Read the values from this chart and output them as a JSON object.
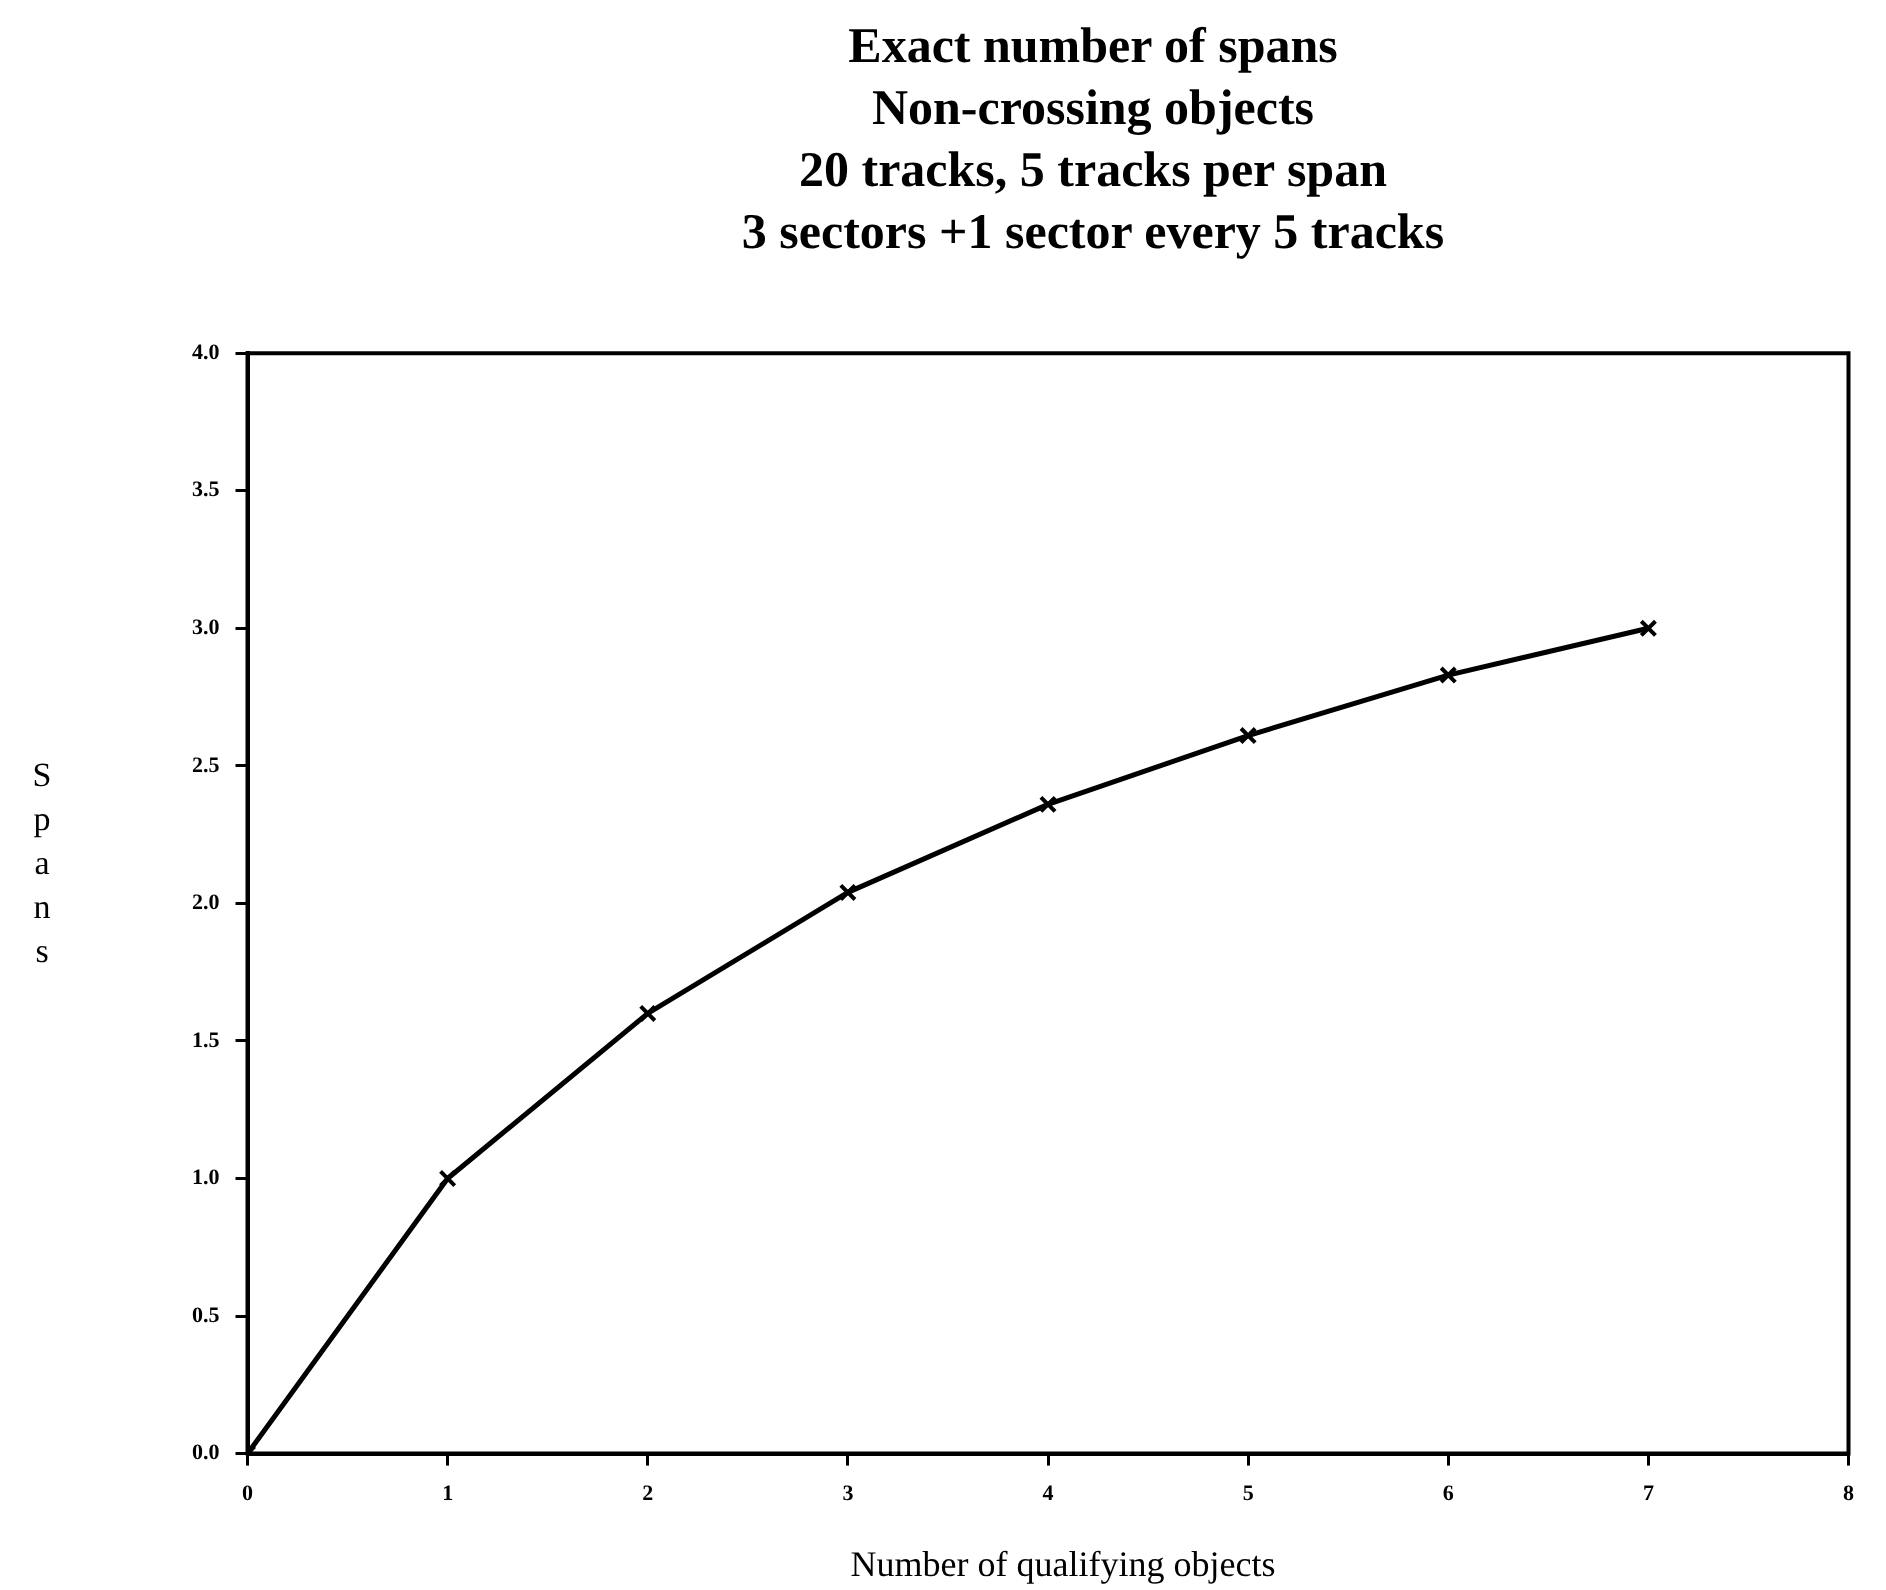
{
  "chart_data": {
    "type": "line",
    "title": "Exact number of spans\nNon-crossing objects\n20 tracks, 5 tracks per span\n3 sectors +1 sector every 5 tracks",
    "xlabel": "Number of qualifying objects",
    "ylabel": "Spans",
    "x": [
      0,
      1,
      2,
      3,
      4,
      5,
      6,
      7
    ],
    "series": [
      {
        "color": "#000000",
        "values": [
          0,
          1.0,
          1.6,
          2.04,
          2.36,
          2.61,
          2.83,
          3.0
        ]
      }
    ],
    "xlim": [
      0,
      8
    ],
    "xticks": [
      0,
      1,
      2,
      3,
      4,
      5,
      6,
      7,
      8
    ],
    "ylim": [
      0,
      4
    ],
    "yticks": [
      {
        "value": 0,
        "label": "0.0"
      },
      {
        "value": 0.5,
        "label": "0.5"
      },
      {
        "value": 1,
        "label": "1.0"
      },
      {
        "value": 1.5,
        "label": "1.5"
      },
      {
        "value": 2,
        "label": "2.0"
      },
      {
        "value": 2.5,
        "label": "2.5"
      },
      {
        "value": 3,
        "label": "3.0"
      },
      {
        "value": 3.5,
        "label": "3.5"
      },
      {
        "value": 4,
        "label": "4.0"
      }
    ],
    "grid": false,
    "legend": false,
    "marker": "cross",
    "line_style": "solid"
  }
}
